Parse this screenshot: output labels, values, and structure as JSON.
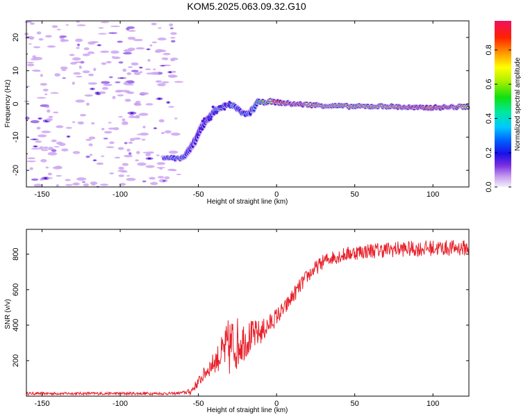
{
  "chart_data": [
    {
      "type": "heatmap",
      "title": "KOM5.2025.063.09.32.G10",
      "xlabel": "Height of straight line (km)",
      "ylabel": "Frequency (Hz)",
      "xlim": [
        -160,
        123
      ],
      "ylim": [
        -25,
        25
      ],
      "xticks": [
        -150,
        -100,
        -50,
        0,
        50,
        100
      ],
      "yticks": [
        -20,
        -10,
        0,
        10,
        20
      ],
      "colorbar": {
        "label": "Normalized spectral amplitude",
        "range": [
          0,
          0.97
        ],
        "ticks": [
          0.0,
          0.2,
          0.4,
          0.6,
          0.8
        ]
      },
      "ridge": {
        "x": [
          -72,
          -62,
          -58,
          -52,
          -48,
          -43,
          -38,
          -33,
          -28,
          -24,
          -21,
          -18,
          -15,
          -12,
          -8,
          -5,
          0,
          10,
          30,
          50,
          70,
          90,
          110,
          123
        ],
        "y": [
          -16,
          -16.5,
          -15.5,
          -11,
          -7,
          -4,
          -1.5,
          -0.5,
          -0.5,
          -2,
          -3,
          -3,
          -1.5,
          0.5,
          0.5,
          0.8,
          0.5,
          0,
          -0.5,
          -0.8,
          -0.7,
          -1.2,
          -1,
          -0.8
        ],
        "amplitude": [
          0.25,
          0.3,
          0.25,
          0.15,
          0.12,
          0.18,
          0.35,
          0.45,
          0.35,
          0.2,
          0.25,
          0.3,
          0.35,
          0.45,
          0.55,
          0.6,
          0.85,
          0.9,
          0.7,
          0.65,
          0.7,
          0.9,
          0.88,
          0.7
        ]
      },
      "background_noise_x_range": [
        -160,
        -62
      ]
    },
    {
      "type": "line",
      "xlabel": "Height of straight line (km)",
      "ylabel": "SNR (v/v)",
      "xlim": [
        -160,
        123
      ],
      "ylim": [
        0,
        940
      ],
      "xticks": [
        -150,
        -100,
        -50,
        0,
        50,
        100
      ],
      "yticks": [
        200,
        400,
        600,
        800
      ],
      "color": "#e8202a",
      "trend": {
        "x": [
          -160,
          -65,
          -55,
          -50,
          -45,
          -40,
          -35,
          -30,
          -25,
          -20,
          -15,
          -10,
          -5,
          0,
          5,
          10,
          15,
          20,
          25,
          30,
          35,
          40,
          45,
          50,
          60,
          70,
          80,
          90,
          100,
          110,
          123
        ],
        "y": [
          15,
          15,
          25,
          80,
          140,
          190,
          240,
          280,
          300,
          320,
          340,
          360,
          400,
          450,
          490,
          560,
          620,
          680,
          720,
          760,
          780,
          790,
          800,
          810,
          820,
          825,
          830,
          830,
          835,
          835,
          835
        ]
      },
      "noise_amplitude": {
        "x": [
          -160,
          -60,
          -50,
          -40,
          -35,
          -30,
          -25,
          -20,
          -15,
          -10,
          -5,
          0,
          10,
          30,
          60,
          123
        ],
        "y": [
          8,
          8,
          30,
          60,
          100,
          180,
          150,
          110,
          90,
          70,
          60,
          50,
          45,
          40,
          45,
          45
        ]
      }
    }
  ]
}
